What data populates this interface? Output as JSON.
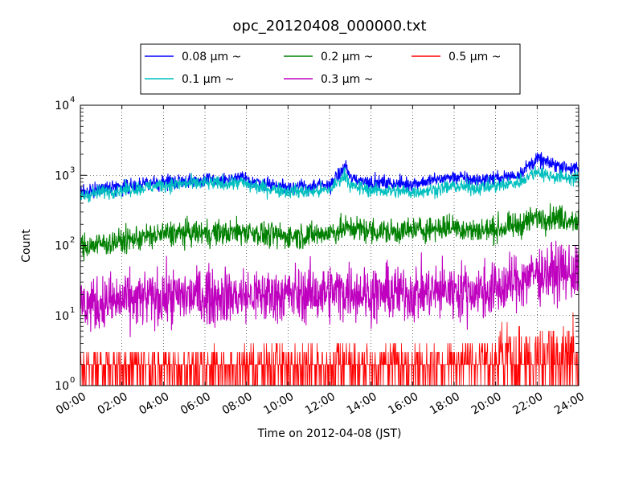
{
  "chart_data": {
    "type": "line",
    "title": "opc_20120408_000000.txt",
    "xlabel": "Time on 2012-04-08 (JST)",
    "ylabel": "Count",
    "x_range_hours": [
      0,
      24
    ],
    "x_ticks": [
      {
        "hour": 0,
        "label": "00:00"
      },
      {
        "hour": 2,
        "label": "02:00"
      },
      {
        "hour": 4,
        "label": "04:00"
      },
      {
        "hour": 6,
        "label": "06:00"
      },
      {
        "hour": 8,
        "label": "08:00"
      },
      {
        "hour": 10,
        "label": "10:00"
      },
      {
        "hour": 12,
        "label": "12:00"
      },
      {
        "hour": 14,
        "label": "14:00"
      },
      {
        "hour": 16,
        "label": "16:00"
      },
      {
        "hour": 18,
        "label": "18:00"
      },
      {
        "hour": 20,
        "label": "20:00"
      },
      {
        "hour": 22,
        "label": "22:00"
      },
      {
        "hour": 24,
        "label": "24:00"
      }
    ],
    "y_scale": "log",
    "ylim": [
      1,
      10000
    ],
    "y_ticks": [
      {
        "value": 1,
        "base": "10",
        "exp": "0"
      },
      {
        "value": 10,
        "base": "10",
        "exp": "1"
      },
      {
        "value": 100,
        "base": "10",
        "exp": "2"
      },
      {
        "value": 1000,
        "base": "10",
        "exp": "3"
      },
      {
        "value": 10000,
        "base": "10",
        "exp": "4"
      }
    ],
    "grid": true,
    "legend_position": "top-center, above plot",
    "series": [
      {
        "name": "0.08 μm ~",
        "color": "#0000ff",
        "noise": 0.05,
        "hours": [
          0,
          1,
          2,
          3,
          4,
          5,
          6,
          7,
          7.8,
          8,
          9,
          10,
          11,
          12,
          12.8,
          13,
          14,
          15,
          16,
          17,
          18,
          19,
          20,
          21,
          22,
          22.5,
          23,
          24
        ],
        "values": [
          560,
          660,
          690,
          730,
          800,
          830,
          850,
          850,
          920,
          850,
          750,
          700,
          680,
          720,
          1350,
          900,
          800,
          760,
          760,
          850,
          950,
          850,
          900,
          1000,
          1700,
          1500,
          1400,
          1200
        ]
      },
      {
        "name": "0.1 μm ~",
        "color": "#00bfbf",
        "noise": 0.05,
        "hours": [
          0,
          1,
          2,
          3,
          4,
          5,
          6,
          7,
          7.8,
          8,
          9,
          10,
          11,
          12,
          12.8,
          13,
          14,
          15,
          16,
          17,
          18,
          19,
          20,
          21,
          22,
          22.5,
          23,
          24
        ],
        "values": [
          500,
          580,
          620,
          660,
          730,
          760,
          770,
          760,
          800,
          730,
          650,
          600,
          580,
          620,
          1050,
          700,
          620,
          600,
          580,
          620,
          700,
          660,
          700,
          780,
          1150,
          1000,
          950,
          900
        ]
      },
      {
        "name": "0.2 μm ~",
        "color": "#008000",
        "noise": 0.09,
        "hours": [
          0,
          1,
          2,
          3,
          4,
          5,
          6,
          7,
          8,
          9,
          10,
          11,
          12,
          13,
          14,
          15,
          16,
          17,
          18,
          19,
          20,
          21,
          22,
          23,
          24
        ],
        "values": [
          95,
          105,
          115,
          130,
          145,
          150,
          150,
          150,
          160,
          140,
          135,
          140,
          150,
          180,
          160,
          155,
          165,
          175,
          185,
          160,
          170,
          190,
          250,
          250,
          230
        ]
      },
      {
        "name": "0.3 μm ~",
        "color": "#bf00bf",
        "noise": 0.2,
        "hours": [
          0,
          1,
          2,
          3,
          4,
          5,
          6,
          7,
          8,
          9,
          10,
          11,
          12,
          13,
          14,
          15,
          16,
          17,
          18,
          19,
          20,
          21,
          22,
          23,
          24
        ],
        "values": [
          14,
          15,
          16,
          17,
          18,
          19,
          19,
          19,
          19,
          19,
          20,
          20,
          21,
          23,
          20,
          21,
          21,
          22,
          23,
          22,
          23,
          30,
          40,
          42,
          40
        ]
      },
      {
        "name": "0.5 μm ~",
        "color": "#ff0000",
        "noise": 0,
        "hours": [
          0,
          4,
          8,
          12,
          16,
          20,
          21,
          22,
          23,
          24
        ],
        "values": [
          1.5,
          1.6,
          1.8,
          1.9,
          2.0,
          2.1,
          2.5,
          3.2,
          3.0,
          3.0
        ]
      }
    ]
  }
}
